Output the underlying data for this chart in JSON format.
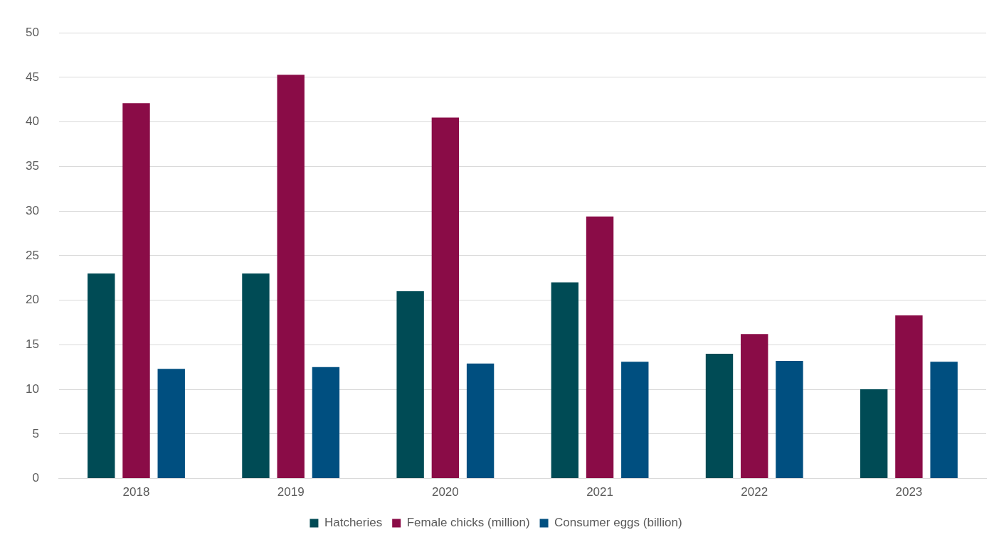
{
  "chart_data": {
    "type": "bar",
    "categories": [
      "2018",
      "2019",
      "2020",
      "2021",
      "2022",
      "2023"
    ],
    "series": [
      {
        "name": "Hatcheries",
        "color": "#004b55",
        "values": [
          23,
          23,
          21,
          22,
          14,
          10
        ]
      },
      {
        "name": "Female chicks (million)",
        "color": "#8a0c47",
        "values": [
          42.1,
          45.3,
          40.5,
          29.4,
          16.2,
          18.3
        ]
      },
      {
        "name": "Consumer eggs (billion)",
        "color": "#004f80",
        "values": [
          12.3,
          12.5,
          12.9,
          13.1,
          13.2,
          13.1
        ]
      }
    ],
    "ylim": [
      0,
      50
    ],
    "yticks": [
      0,
      5,
      10,
      15,
      20,
      25,
      30,
      35,
      40,
      45,
      50
    ],
    "grid": "y",
    "legend": "bottom"
  }
}
